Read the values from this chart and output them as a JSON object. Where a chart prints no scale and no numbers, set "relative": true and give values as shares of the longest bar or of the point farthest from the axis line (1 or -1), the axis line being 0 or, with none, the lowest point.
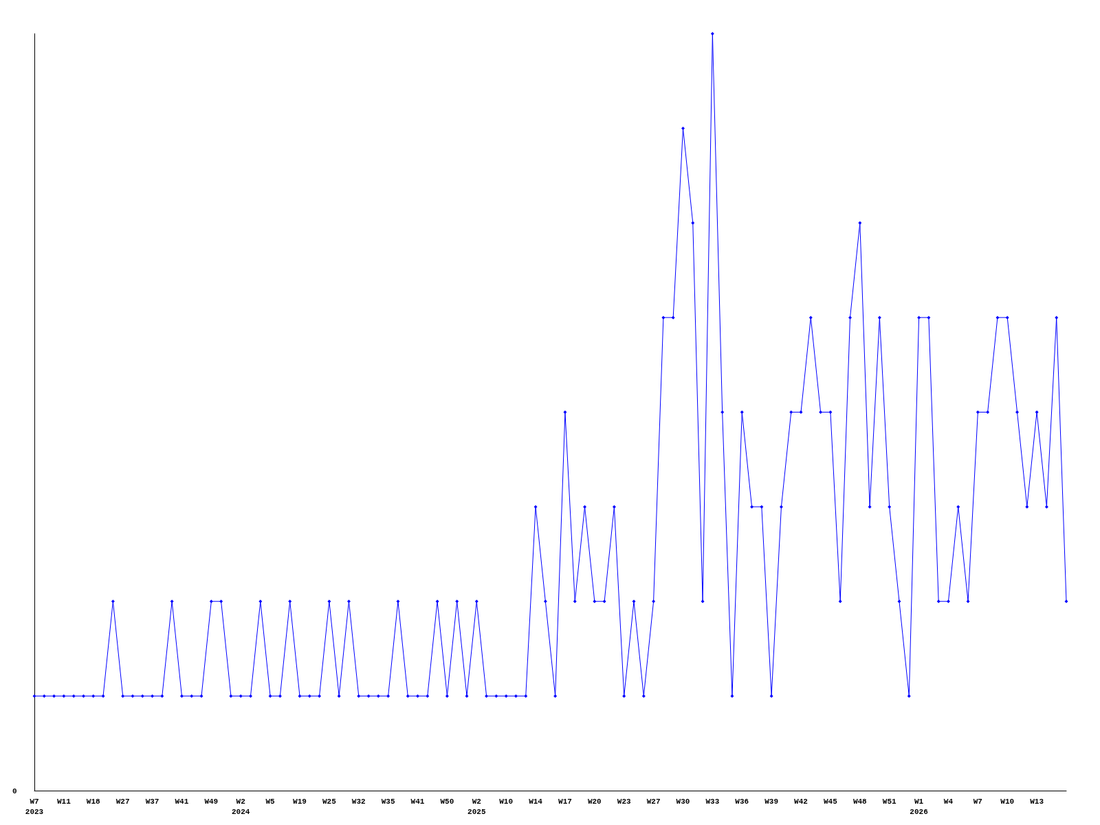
{
  "chart_data": {
    "type": "line",
    "relative": true,
    "grid": false,
    "marker": "diamond",
    "line_style": "solid",
    "annotations": [
      "0"
    ],
    "categories": [
      "W7\n2023",
      null,
      null,
      "W11",
      null,
      null,
      "W18",
      null,
      null,
      "W27",
      null,
      null,
      "W37",
      null,
      null,
      "W41",
      null,
      null,
      "W49",
      null,
      null,
      "W2\n2024",
      null,
      null,
      "W5",
      null,
      null,
      "W19",
      null,
      null,
      "W25",
      null,
      null,
      "W32",
      null,
      null,
      "W35",
      null,
      null,
      "W41",
      null,
      null,
      "W50",
      null,
      null,
      "W2\n2025",
      null,
      null,
      "W10",
      null,
      null,
      "W14",
      null,
      null,
      "W17",
      null,
      null,
      "W20",
      null,
      null,
      "W23",
      null,
      null,
      "W27",
      null,
      null,
      "W30",
      null,
      null,
      "W33",
      null,
      null,
      "W36",
      null,
      null,
      "W39",
      null,
      null,
      "W42",
      null,
      null,
      "W45",
      null,
      null,
      "W48",
      null,
      null,
      "W51",
      null,
      null,
      "W1\n2026",
      null,
      null,
      "W4",
      null,
      null,
      "W7",
      null,
      null,
      "W10",
      null,
      null,
      "W13",
      null,
      null,
      null
    ],
    "series": [
      {
        "color": "#0000ff",
        "values": [
          0.125,
          0.125,
          0.125,
          0.125,
          0.125,
          0.125,
          0.125,
          0.125,
          0.25,
          0.125,
          0.125,
          0.125,
          0.125,
          0.125,
          0.25,
          0.125,
          0.125,
          0.125,
          0.25,
          0.25,
          0.125,
          0.125,
          0.125,
          0.25,
          0.125,
          0.125,
          0.25,
          0.125,
          0.125,
          0.125,
          0.25,
          0.125,
          0.25,
          0.125,
          0.125,
          0.125,
          0.125,
          0.25,
          0.125,
          0.125,
          0.125,
          0.25,
          0.125,
          0.25,
          0.125,
          0.25,
          0.125,
          0.125,
          0.125,
          0.125,
          0.125,
          0.375,
          0.25,
          0.125,
          0.5,
          0.25,
          0.375,
          0.25,
          0.25,
          0.375,
          0.125,
          0.25,
          0.125,
          0.25,
          0.625,
          0.625,
          0.875,
          0.75,
          0.25,
          1,
          0.5,
          0.125,
          0.5,
          0.375,
          0.375,
          0.125,
          0.375,
          0.5,
          0.5,
          0.625,
          0.5,
          0.5,
          0.25,
          0.625,
          0.75,
          0.375,
          0.625,
          0.375,
          0.25,
          0.125,
          0.625,
          0.625,
          0.25,
          0.25,
          0.375,
          0.25,
          0.5,
          0.5,
          0.625,
          0.625,
          0.5,
          0.375,
          0.5,
          0.375,
          0.625,
          0.25
        ]
      }
    ]
  }
}
